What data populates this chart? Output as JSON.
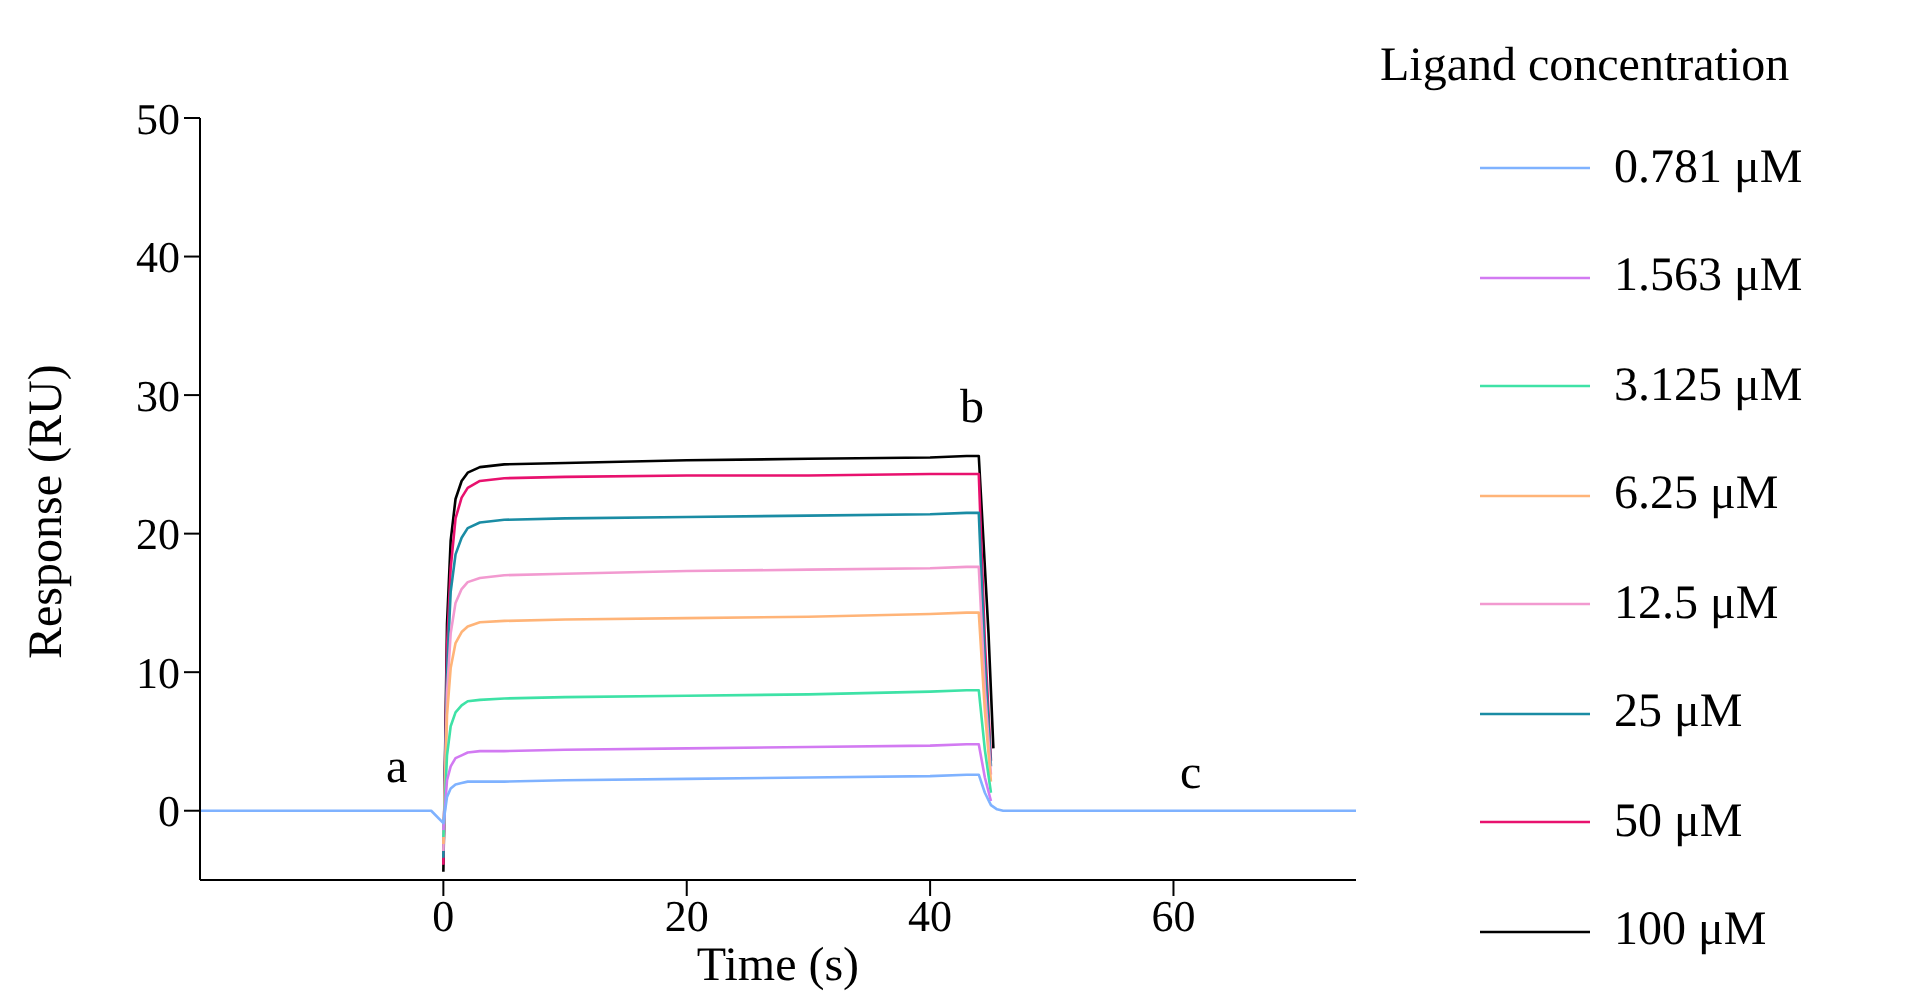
{
  "chart_data": {
    "type": "line",
    "xlabel": "Time (s)",
    "ylabel": "Response (RU)",
    "legend_title": "Ligand concentration",
    "legend": "right",
    "marker": "none",
    "line_style": "solid",
    "grid": false,
    "xlim": [
      -20,
      75
    ],
    "xticks": [
      0,
      20,
      40,
      60
    ],
    "ylim": [
      -5,
      50
    ],
    "yticks": [
      0,
      10,
      20,
      30,
      40,
      50
    ],
    "series": [
      {
        "name": "0.781 μM",
        "color": "#7fb2ff",
        "x": [
          -20,
          -10,
          -1,
          0,
          0.3,
          0.6,
          1,
          1.5,
          2,
          3,
          5,
          10,
          20,
          30,
          40,
          43,
          44,
          44.5,
          45,
          45.5,
          46,
          48,
          55,
          65,
          75
        ],
        "values": [
          0,
          0,
          0,
          -0.9,
          1,
          1.6,
          1.9,
          2,
          2.1,
          2.1,
          2.1,
          2.2,
          2.3,
          2.4,
          2.5,
          2.6,
          2.6,
          1.3,
          0.4,
          0.1,
          0,
          0,
          0,
          0,
          0
        ]
      },
      {
        "name": "1.563 μM",
        "color": "#d27af2",
        "x": [
          0,
          0.3,
          0.6,
          1,
          1.5,
          2,
          3,
          5,
          10,
          20,
          30,
          40,
          43,
          44,
          44.5,
          45
        ],
        "values": [
          -1.4,
          2.2,
          3.2,
          3.8,
          4,
          4.2,
          4.3,
          4.3,
          4.4,
          4.5,
          4.6,
          4.7,
          4.8,
          4.8,
          2.4,
          0.7
        ]
      },
      {
        "name": "3.125 μM",
        "color": "#3ee2a6",
        "x": [
          0,
          0.3,
          0.6,
          1,
          1.5,
          2,
          3,
          5,
          10,
          20,
          30,
          40,
          43,
          44,
          44.5,
          45
        ],
        "values": [
          -1.9,
          4,
          6.1,
          7.1,
          7.6,
          7.9,
          8,
          8.1,
          8.2,
          8.3,
          8.4,
          8.6,
          8.7,
          8.7,
          4.4,
          1.3
        ]
      },
      {
        "name": "6.25 μM",
        "color": "#ffb478",
        "x": [
          0,
          0.3,
          0.6,
          1,
          1.5,
          2,
          3,
          5,
          10,
          20,
          30,
          40,
          43,
          44,
          44.5,
          45
        ],
        "values": [
          -2.4,
          6.9,
          10.3,
          12.1,
          12.9,
          13.3,
          13.6,
          13.7,
          13.8,
          13.9,
          14,
          14.2,
          14.3,
          14.3,
          7.2,
          2.1
        ]
      },
      {
        "name": "12.5 μM",
        "color": "#f29ad0",
        "x": [
          0,
          0.3,
          0.6,
          1,
          1.5,
          2,
          3,
          5,
          10,
          20,
          30,
          40,
          43,
          44,
          44.5,
          45
        ],
        "values": [
          -2.9,
          8.5,
          12.8,
          15,
          16,
          16.5,
          16.8,
          17,
          17.1,
          17.3,
          17.4,
          17.5,
          17.6,
          17.6,
          8.8,
          2.6
        ]
      },
      {
        "name": "25 μM",
        "color": "#1a8ca4",
        "x": [
          0,
          0.3,
          0.6,
          1,
          1.5,
          2,
          3,
          5,
          10,
          20,
          30,
          40,
          43,
          44,
          44.5,
          45
        ],
        "values": [
          -3.4,
          10,
          15.8,
          18.5,
          19.7,
          20.4,
          20.8,
          21,
          21.1,
          21.2,
          21.3,
          21.4,
          21.5,
          21.5,
          10.8,
          3.2
        ]
      },
      {
        "name": "50 μM",
        "color": "#e8116e",
        "x": [
          0,
          0.3,
          0.6,
          1,
          1.5,
          2,
          3,
          5,
          10,
          20,
          30,
          40,
          43,
          44,
          44.5,
          45
        ],
        "values": [
          -3.9,
          11.8,
          17.5,
          21.1,
          22.6,
          23.3,
          23.8,
          24,
          24.1,
          24.2,
          24.2,
          24.3,
          24.3,
          24.3,
          12.2,
          3.6
        ]
      },
      {
        "name": "100 μM",
        "color": "#000000",
        "x": [
          0,
          0.3,
          0.6,
          1,
          1.5,
          2,
          3,
          5,
          10,
          20,
          30,
          40,
          43,
          44,
          44.8,
          45.2
        ],
        "values": [
          -4.4,
          13.5,
          19.5,
          22.5,
          23.8,
          24.4,
          24.8,
          25,
          25.1,
          25.3,
          25.4,
          25.5,
          25.6,
          25.6,
          12.8,
          4.5
        ]
      }
    ],
    "annotations": [
      "a",
      "b",
      "c"
    ]
  }
}
